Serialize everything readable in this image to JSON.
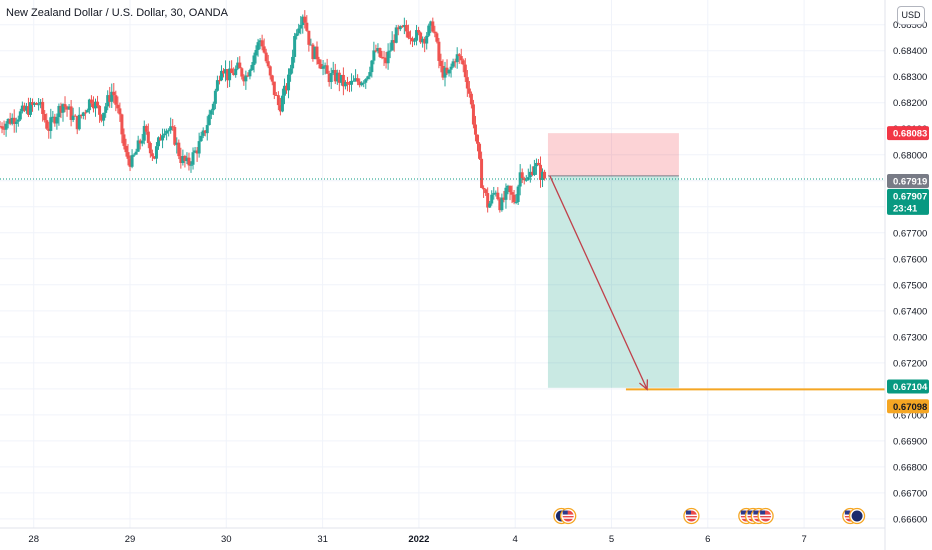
{
  "title": "New Zealand Dollar / U.S. Dollar, 30, OANDA",
  "currency_button": "USD",
  "colors": {
    "up": "#26a69a",
    "down": "#ef5350",
    "grid": "#f0f3fa",
    "stop_zone": "rgba(242,54,69,0.22)",
    "target_zone": "rgba(8,153,129,0.22)",
    "target_line": "#f5a623",
    "arrow": "#c0404a",
    "last_price_tag": "#089981",
    "stop_tag": "#f23645",
    "entry_tag": "#787b86"
  },
  "icons": [
    "event-flag-nz-icon",
    "event-flag-us-icon",
    "event-flag-us-icon",
    "event-flag-us-icon",
    "event-flag-us-icon",
    "event-flag-us-icon",
    "event-flag-us-icon",
    "event-flag-us-icon",
    "event-flag-nz-icon",
    "event-flag-us-icon"
  ],
  "chart_data": {
    "type": "candlestick",
    "y_ticks": [
      0.685,
      0.684,
      0.683,
      0.682,
      0.681,
      0.68,
      0.679,
      0.678,
      0.677,
      0.676,
      0.675,
      0.674,
      0.673,
      0.672,
      0.671,
      0.67,
      0.669,
      0.668,
      0.667,
      0.666
    ],
    "y_tick_labels": [
      "0.68500",
      "0.68400",
      "0.68300",
      "0.68200",
      "0.68100",
      "0.68000",
      "0.67900",
      "0.67800",
      "0.67700",
      "0.67600",
      "0.67500",
      "0.67400",
      "0.67300",
      "0.67200",
      "0.67100",
      "0.67000",
      "0.66900",
      "0.66800",
      "0.66700",
      "0.66600"
    ],
    "ylim": [
      0.66565,
      0.68595
    ],
    "x_ticks": [
      "28",
      "29",
      "30",
      "31",
      "2022",
      "4",
      "5",
      "6",
      "7"
    ],
    "x_tick_days": [
      0,
      1,
      2,
      3,
      4,
      5,
      6,
      7,
      8
    ],
    "xlim": [
      -0.35,
      8.84
    ],
    "price_path": [
      [
        -0.35,
        0.6811
      ],
      [
        0.05,
        0.682
      ],
      [
        0.15,
        0.681
      ],
      [
        0.3,
        0.682
      ],
      [
        0.45,
        0.6812
      ],
      [
        0.6,
        0.6822
      ],
      [
        0.7,
        0.6815
      ],
      [
        0.82,
        0.6825
      ],
      [
        0.9,
        0.6812
      ],
      [
        0.95,
        0.68
      ],
      [
        1.02,
        0.6797
      ],
      [
        1.15,
        0.6809
      ],
      [
        1.25,
        0.6799
      ],
      [
        1.35,
        0.6811
      ],
      [
        1.45,
        0.6808
      ],
      [
        1.52,
        0.6799
      ],
      [
        1.6,
        0.6796
      ],
      [
        1.75,
        0.6806
      ],
      [
        1.85,
        0.6818
      ],
      [
        1.95,
        0.6835
      ],
      [
        2.02,
        0.683
      ],
      [
        2.12,
        0.6833
      ],
      [
        2.2,
        0.683
      ],
      [
        2.28,
        0.6838
      ],
      [
        2.36,
        0.6845
      ],
      [
        2.45,
        0.683
      ],
      [
        2.55,
        0.6818
      ],
      [
        2.65,
        0.6829
      ],
      [
        2.72,
        0.6848
      ],
      [
        2.8,
        0.6855
      ],
      [
        2.88,
        0.684
      ],
      [
        2.95,
        0.6838
      ],
      [
        3.05,
        0.683
      ],
      [
        3.15,
        0.683
      ],
      [
        3.25,
        0.6826
      ],
      [
        3.35,
        0.6828
      ],
      [
        3.45,
        0.683
      ],
      [
        3.55,
        0.684
      ],
      [
        3.65,
        0.6835
      ],
      [
        3.75,
        0.6846
      ],
      [
        3.85,
        0.6848
      ],
      [
        3.95,
        0.6846
      ],
      [
        4.05,
        0.6845
      ],
      [
        4.15,
        0.685
      ],
      [
        4.22,
        0.6833
      ],
      [
        4.3,
        0.683
      ],
      [
        4.38,
        0.6838
      ],
      [
        4.45,
        0.6836
      ],
      [
        4.52,
        0.6825
      ],
      [
        4.58,
        0.681
      ],
      [
        4.65,
        0.679
      ],
      [
        4.72,
        0.678
      ],
      [
        4.8,
        0.6787
      ],
      [
        4.85,
        0.678
      ],
      [
        4.92,
        0.6786
      ],
      [
        5.0,
        0.6782
      ],
      [
        5.06,
        0.6795
      ],
      [
        5.12,
        0.6789
      ],
      [
        5.2,
        0.6797
      ],
      [
        5.27,
        0.6792
      ],
      [
        5.32,
        0.67907
      ]
    ],
    "position": {
      "type": "short",
      "entry": 0.67919,
      "stop": 0.68083,
      "target": 0.67104,
      "start_day": 5.34,
      "end_day": 6.7
    },
    "target_line": {
      "price": 0.67098,
      "from_day": 6.15,
      "to_day": 8.84
    },
    "arrow": {
      "from_day": 5.36,
      "from_price": 0.67919,
      "to_day": 6.37,
      "to_price": 0.67098
    },
    "tags": {
      "stop": "0.68083",
      "entry": "0.67919",
      "last_price": "0.67907",
      "countdown": "23:41",
      "target": "0.67104",
      "target_line": "0.67098"
    },
    "event_days": [
      5.48,
      5.55,
      6.83,
      7.4,
      7.47,
      7.53,
      7.6,
      8.48,
      8.55,
      9.1,
      9.57
    ]
  }
}
